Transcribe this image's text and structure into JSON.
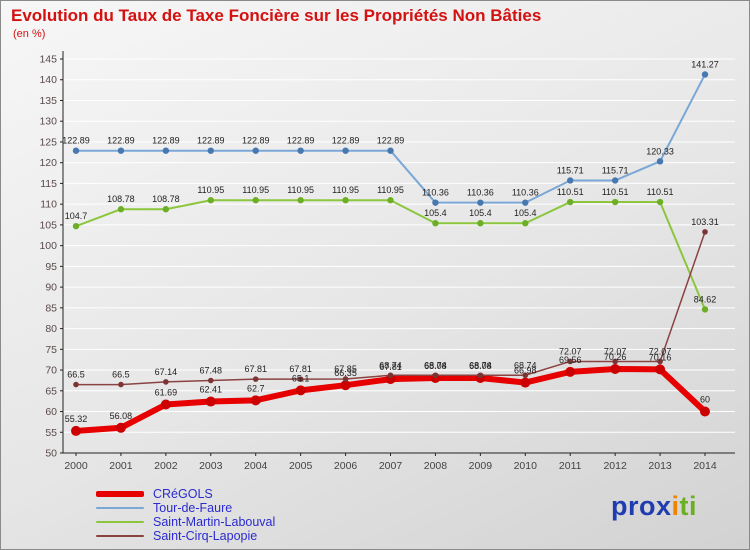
{
  "chart_data": {
    "type": "line",
    "title": "Evolution du Taux de Taxe Foncière sur les Propriétés Non Bâties",
    "subtitle": "(en %)",
    "x": [
      2000,
      2001,
      2002,
      2003,
      2004,
      2005,
      2006,
      2007,
      2008,
      2009,
      2010,
      2011,
      2012,
      2013,
      2014
    ],
    "ylim": [
      50,
      145
    ],
    "ytick_step": 5,
    "grid": "horizontal-white",
    "legend_position": "bottom-left",
    "draw_order": [
      1,
      2,
      0,
      3
    ],
    "series": [
      {
        "name": "CRéGOLS",
        "color": "#e60000",
        "marker_color": "#cc0000",
        "width": 6,
        "marker": 5,
        "label_dy": 9,
        "values": [
          55.32,
          56.08,
          61.69,
          62.41,
          62.7,
          65.1,
          66.35,
          67.81,
          68.08,
          68.08,
          66.98,
          69.56,
          70.26,
          70.16,
          60
        ]
      },
      {
        "name": "Tour-de-Faure",
        "color": "#7ba7d7",
        "marker_color": "#4878b0",
        "width": 2,
        "marker": 3.2,
        "label_dy": 7,
        "values": [
          122.89,
          122.89,
          122.89,
          122.89,
          122.89,
          122.89,
          122.89,
          122.89,
          110.36,
          110.36,
          110.36,
          115.71,
          115.71,
          120.33,
          141.27
        ]
      },
      {
        "name": "Saint-Martin-Labouval",
        "color": "#8cc63e",
        "marker_color": "#6cae24",
        "width": 2,
        "marker": 3.2,
        "label_dy": 7,
        "values": [
          104.7,
          108.78,
          108.78,
          110.95,
          110.95,
          110.95,
          110.95,
          110.95,
          105.4,
          105.4,
          105.4,
          110.51,
          110.51,
          110.51,
          84.62
        ]
      },
      {
        "name": "Saint-Cirq-Lapopie",
        "color": "#8b4242",
        "marker_color": "#7a3535",
        "width": 1.5,
        "marker": 2.8,
        "label_dy": 7,
        "values": [
          66.5,
          66.5,
          67.14,
          67.48,
          67.81,
          67.81,
          67.85,
          68.74,
          68.74,
          68.74,
          68.74,
          72.07,
          72.07,
          72.07,
          103.31
        ]
      }
    ]
  },
  "legend": {
    "label_color": "#2b2bd0",
    "items": [
      {
        "label": "CRéGOLS",
        "color": "#e60000",
        "thick": true
      },
      {
        "label": "Tour-de-Faure",
        "color": "#7ba7d7",
        "thick": false
      },
      {
        "label": "Saint-Martin-Labouval",
        "color": "#8cc63e",
        "thick": false
      },
      {
        "label": "Saint-Cirq-Lapopie",
        "color": "#8b4242",
        "thick": false
      }
    ]
  },
  "logo": {
    "segments": [
      {
        "text": "pro",
        "color": "#1f3db0"
      },
      {
        "text": "x",
        "color": "#1f3db0"
      },
      {
        "text": "i",
        "color": "#f08300"
      },
      {
        "text": "ti",
        "color": "#6ab023"
      }
    ]
  }
}
